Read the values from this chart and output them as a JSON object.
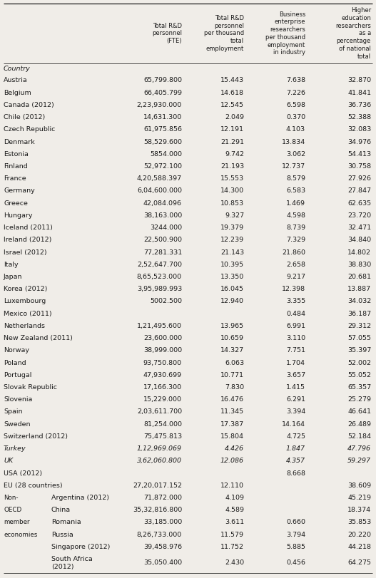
{
  "bg_color": "#f0ede8",
  "text_color": "#1a1a1a",
  "header_cols": [
    "Total R&D\npersonnel\n(FTE)",
    "Total R&D\npersonnel\nper thousand\ntotal\nemployment",
    "Business\nenterprise\nresearchers\nper thousand\nemployment\nin industry",
    "Higher\neducation\nresearchers\nas a\npercentage\nof national\ntotal"
  ],
  "rows": [
    {
      "grp": "",
      "country": "Austria",
      "c1": "65,799.800",
      "c2": "15.443",
      "c3": "7.638",
      "c4": "32.870",
      "italic": false
    },
    {
      "grp": "",
      "country": "Belgium",
      "c1": "66,405.799",
      "c2": "14.618",
      "c3": "7.226",
      "c4": "41.841",
      "italic": false
    },
    {
      "grp": "",
      "country": "Canada (2012)",
      "c1": "2,23,930.000",
      "c2": "12.545",
      "c3": "6.598",
      "c4": "36.736",
      "italic": false
    },
    {
      "grp": "",
      "country": "Chile (2012)",
      "c1": "14,631.300",
      "c2": "2.049",
      "c3": "0.370",
      "c4": "52.388",
      "italic": false
    },
    {
      "grp": "",
      "country": "Czech Republic",
      "c1": "61,975.856",
      "c2": "12.191",
      "c3": "4.103",
      "c4": "32.083",
      "italic": false
    },
    {
      "grp": "",
      "country": "Denmark",
      "c1": "58,529.600",
      "c2": "21.291",
      "c3": "13.834",
      "c4": "34.976",
      "italic": false
    },
    {
      "grp": "",
      "country": "Estonia",
      "c1": "5854.000",
      "c2": "9.742",
      "c3": "3.062",
      "c4": "54.413",
      "italic": false
    },
    {
      "grp": "",
      "country": "Finland",
      "c1": "52,972.100",
      "c2": "21.193",
      "c3": "12.737",
      "c4": "30.758",
      "italic": false
    },
    {
      "grp": "",
      "country": "France",
      "c1": "4,20,588.397",
      "c2": "15.553",
      "c3": "8.579",
      "c4": "27.926",
      "italic": false
    },
    {
      "grp": "",
      "country": "Germany",
      "c1": "6,04,600.000",
      "c2": "14.300",
      "c3": "6.583",
      "c4": "27.847",
      "italic": false
    },
    {
      "grp": "",
      "country": "Greece",
      "c1": "42,084.096",
      "c2": "10.853",
      "c3": "1.469",
      "c4": "62.635",
      "italic": false
    },
    {
      "grp": "",
      "country": "Hungary",
      "c1": "38,163.000",
      "c2": "9.327",
      "c3": "4.598",
      "c4": "23.720",
      "italic": false
    },
    {
      "grp": "",
      "country": "Iceland (2011)",
      "c1": "3244.000",
      "c2": "19.379",
      "c3": "8.739",
      "c4": "32.471",
      "italic": false
    },
    {
      "grp": "",
      "country": "Ireland (2012)",
      "c1": "22,500.900",
      "c2": "12.239",
      "c3": "7.329",
      "c4": "34.840",
      "italic": false
    },
    {
      "grp": "",
      "country": "Israel (2012)",
      "c1": "77,281.331",
      "c2": "21.143",
      "c3": "21.860",
      "c4": "14.802",
      "italic": false
    },
    {
      "grp": "",
      "country": "Italy",
      "c1": "2,52,647.700",
      "c2": "10.395",
      "c3": "2.658",
      "c4": "38.830",
      "italic": false
    },
    {
      "grp": "",
      "country": "Japan",
      "c1": "8,65,523.000",
      "c2": "13.350",
      "c3": "9.217",
      "c4": "20.681",
      "italic": false
    },
    {
      "grp": "",
      "country": "Korea (2012)",
      "c1": "3,95,989.993",
      "c2": "16.045",
      "c3": "12.398",
      "c4": "13.887",
      "italic": false
    },
    {
      "grp": "",
      "country": "Luxembourg",
      "c1": "5002.500",
      "c2": "12.940",
      "c3": "3.355",
      "c4": "34.032",
      "italic": false
    },
    {
      "grp": "",
      "country": "Mexico (2011)",
      "c1": "",
      "c2": "",
      "c3": "0.484",
      "c4": "36.187",
      "italic": false
    },
    {
      "grp": "",
      "country": "Netherlands",
      "c1": "1,21,495.600",
      "c2": "13.965",
      "c3": "6.991",
      "c4": "29.312",
      "italic": false
    },
    {
      "grp": "",
      "country": "New Zealand (2011)",
      "c1": "23,600.000",
      "c2": "10.659",
      "c3": "3.110",
      "c4": "57.055",
      "italic": false
    },
    {
      "grp": "",
      "country": "Norway",
      "c1": "38,999.000",
      "c2": "14.327",
      "c3": "7.751",
      "c4": "35.397",
      "italic": false
    },
    {
      "grp": "",
      "country": "Poland",
      "c1": "93,750.800",
      "c2": "6.063",
      "c3": "1.704",
      "c4": "52.002",
      "italic": false
    },
    {
      "grp": "",
      "country": "Portugal",
      "c1": "47,930.699",
      "c2": "10.771",
      "c3": "3.657",
      "c4": "55.052",
      "italic": false
    },
    {
      "grp": "",
      "country": "Slovak Republic",
      "c1": "17,166.300",
      "c2": "7.830",
      "c3": "1.415",
      "c4": "65.357",
      "italic": false
    },
    {
      "grp": "",
      "country": "Slovenia",
      "c1": "15,229.000",
      "c2": "16.476",
      "c3": "6.291",
      "c4": "25.279",
      "italic": false
    },
    {
      "grp": "",
      "country": "Spain",
      "c1": "2,03,611.700",
      "c2": "11.345",
      "c3": "3.394",
      "c4": "46.641",
      "italic": false
    },
    {
      "grp": "",
      "country": "Sweden",
      "c1": "81,254.000",
      "c2": "17.387",
      "c3": "14.164",
      "c4": "26.489",
      "italic": false
    },
    {
      "grp": "",
      "country": "Switzerland (2012)",
      "c1": "75,475.813",
      "c2": "15.804",
      "c3": "4.725",
      "c4": "52.184",
      "italic": false
    },
    {
      "grp": "",
      "country": "Turkey",
      "c1": "1,12,969.069",
      "c2": "4.426",
      "c3": "1.847",
      "c4": "47.796",
      "italic": true
    },
    {
      "grp": "",
      "country": "UK",
      "c1": "3,62,060.800",
      "c2": "12.086",
      "c3": "4.357",
      "c4": "59.297",
      "italic": true
    },
    {
      "grp": "",
      "country": "USA (2012)",
      "c1": "",
      "c2": "",
      "c3": "8.668",
      "c4": "",
      "italic": false
    },
    {
      "grp": "",
      "country": "EU (28 countries)",
      "c1": "27,20,017.152",
      "c2": "12.110",
      "c3": "",
      "c4": "38.609",
      "italic": false
    },
    {
      "grp": "Non-",
      "country": "Argentina (2012)",
      "c1": "71,872.000",
      "c2": "4.109",
      "c3": "",
      "c4": "45.219",
      "italic": false
    },
    {
      "grp": "OECD",
      "country": "China",
      "c1": "35,32,816.800",
      "c2": "4.589",
      "c3": "",
      "c4": "18.374",
      "italic": false
    },
    {
      "grp": "member",
      "country": "Romania",
      "c1": "33,185.000",
      "c2": "3.611",
      "c3": "0.660",
      "c4": "35.853",
      "italic": false
    },
    {
      "grp": "economies",
      "country": "Russia",
      "c1": "8,26,733.000",
      "c2": "11.579",
      "c3": "3.794",
      "c4": "20.220",
      "italic": false
    },
    {
      "grp": "",
      "country": "Singapore (2012)",
      "c1": "39,458.976",
      "c2": "11.752",
      "c3": "5.885",
      "c4": "44.218",
      "italic": false
    },
    {
      "grp": "",
      "country": "South Africa\n(2012)",
      "c1": "35,050.400",
      "c2": "2.430",
      "c3": "0.456",
      "c4": "64.275",
      "italic": false
    }
  ],
  "fig_width": 5.27,
  "fig_height": 8.11,
  "dpi": 100
}
